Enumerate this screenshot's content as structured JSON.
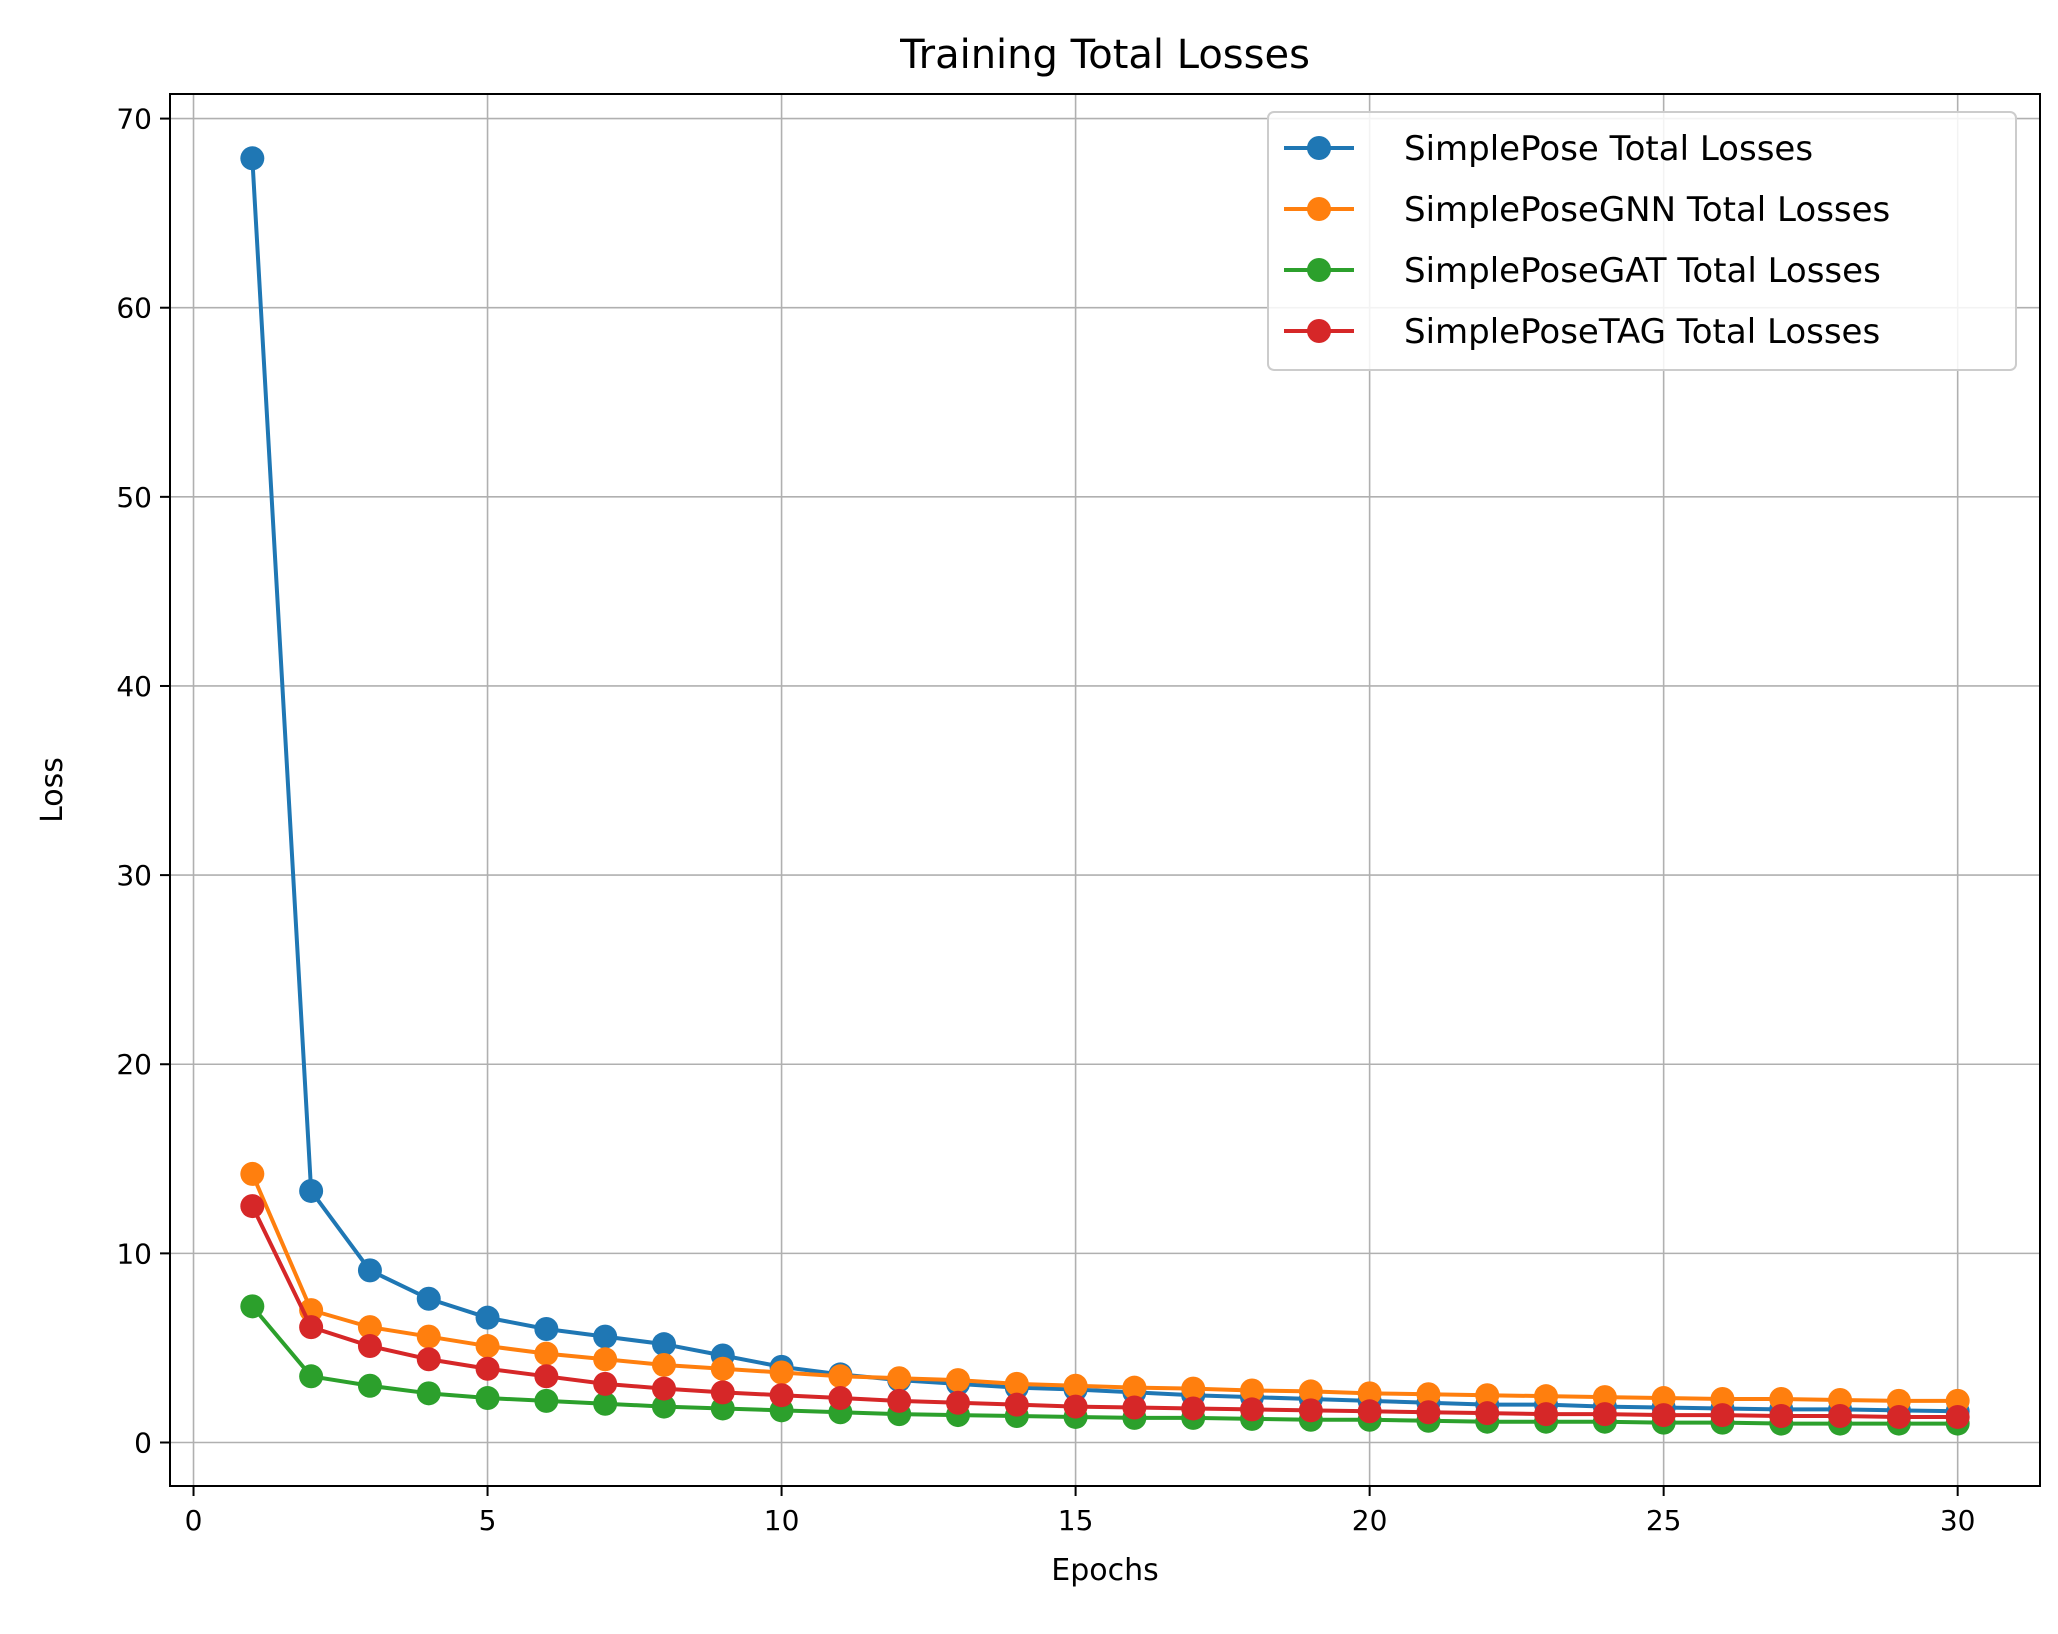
{
  "chart_data": {
    "type": "line",
    "title": "Training Total Losses",
    "xlabel": "Epochs",
    "ylabel": "Loss",
    "xlim": [
      -0.4,
      31.4
    ],
    "ylim": [
      -2.3,
      71.3
    ],
    "xticks": [
      0,
      5,
      10,
      15,
      20,
      25,
      30
    ],
    "yticks": [
      0,
      10,
      20,
      30,
      40,
      50,
      60,
      70
    ],
    "grid": true,
    "legend_position": "top-right",
    "x": [
      1,
      2,
      3,
      4,
      5,
      6,
      7,
      8,
      9,
      10,
      11,
      12,
      13,
      14,
      15,
      16,
      17,
      18,
      19,
      20,
      21,
      22,
      23,
      24,
      25,
      26,
      27,
      28,
      29,
      30
    ],
    "series": [
      {
        "name": "SimplePose Total Losses",
        "color": "#1f77b4",
        "values": [
          67.9,
          13.3,
          9.1,
          7.6,
          6.6,
          6.0,
          5.6,
          5.2,
          4.6,
          4.0,
          3.6,
          3.3,
          3.1,
          2.9,
          2.8,
          2.65,
          2.5,
          2.4,
          2.3,
          2.2,
          2.1,
          2.0,
          2.0,
          1.9,
          1.85,
          1.8,
          1.75,
          1.75,
          1.7,
          1.65
        ]
      },
      {
        "name": "SimplePoseGNN Total Losses",
        "color": "#ff7f0e",
        "values": [
          14.2,
          7.0,
          6.1,
          5.6,
          5.1,
          4.7,
          4.4,
          4.1,
          3.9,
          3.7,
          3.5,
          3.4,
          3.3,
          3.1,
          3.0,
          2.9,
          2.85,
          2.75,
          2.7,
          2.6,
          2.55,
          2.5,
          2.45,
          2.4,
          2.35,
          2.3,
          2.3,
          2.25,
          2.2,
          2.2
        ]
      },
      {
        "name": "SimplePoseGAT Total Losses",
        "color": "#2ca02c",
        "values": [
          7.2,
          3.5,
          3.0,
          2.6,
          2.35,
          2.2,
          2.05,
          1.9,
          1.8,
          1.7,
          1.6,
          1.5,
          1.45,
          1.4,
          1.35,
          1.3,
          1.3,
          1.25,
          1.2,
          1.2,
          1.15,
          1.1,
          1.1,
          1.1,
          1.05,
          1.05,
          1.0,
          1.0,
          1.0,
          1.0
        ]
      },
      {
        "name": "SimplePoseTAG Total Losses",
        "color": "#d62728",
        "values": [
          12.5,
          6.1,
          5.1,
          4.4,
          3.9,
          3.5,
          3.1,
          2.85,
          2.65,
          2.5,
          2.35,
          2.2,
          2.1,
          2.0,
          1.9,
          1.85,
          1.8,
          1.75,
          1.7,
          1.65,
          1.6,
          1.55,
          1.5,
          1.5,
          1.45,
          1.45,
          1.4,
          1.4,
          1.35,
          1.35
        ]
      }
    ]
  }
}
